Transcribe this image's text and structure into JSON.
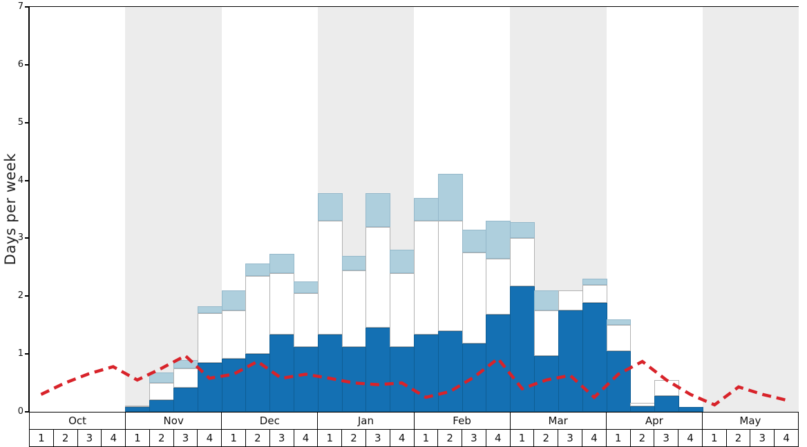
{
  "chart_data": {
    "type": "bar",
    "title": "",
    "ylabel": "Days per week",
    "ylim": [
      0,
      7
    ],
    "yticks": [
      "0",
      "1",
      "2",
      "3",
      "4",
      "5",
      "6",
      "7"
    ],
    "grid": false,
    "legend": "none",
    "months": [
      "Oct",
      "Nov",
      "Dec",
      "Jan",
      "Feb",
      "Mar",
      "Apr",
      "May"
    ],
    "weeks_per_month": 4,
    "week_labels": [
      "1",
      "2",
      "3",
      "4"
    ],
    "shaded_months": [
      "Nov",
      "Jan",
      "Mar",
      "May"
    ],
    "band_color": "#ececec",
    "series": [
      {
        "name": "dark-blue",
        "color": "#1470b3",
        "border": "#0e5d94",
        "values": [
          0,
          0,
          0,
          0,
          0.08,
          0.2,
          0.42,
          0.85,
          0.92,
          1.0,
          1.33,
          1.12,
          1.33,
          1.12,
          1.45,
          1.12,
          1.33,
          1.4,
          1.18,
          1.68,
          2.17,
          0.97,
          1.75,
          1.88,
          1.05,
          0.1,
          0.28,
          0.08,
          0,
          0,
          0,
          0
        ]
      },
      {
        "name": "white",
        "color": "#ffffff",
        "border": "#b0b0b0",
        "values": [
          0,
          0,
          0,
          0,
          0.02,
          0.3,
          0.33,
          0.85,
          0.83,
          1.35,
          1.07,
          0.93,
          1.97,
          1.33,
          1.75,
          1.28,
          1.97,
          1.9,
          1.57,
          0.97,
          0.83,
          0.78,
          0.35,
          0.32,
          0.45,
          0.05,
          0.27,
          0,
          0,
          0,
          0,
          0
        ]
      },
      {
        "name": "light-blue",
        "color": "#aecfdd",
        "border": "#94b8ca",
        "values": [
          0,
          0,
          0,
          0,
          0,
          0.18,
          0.15,
          0.12,
          0.35,
          0.22,
          0.33,
          0.2,
          0.48,
          0.25,
          0.58,
          0.4,
          0.4,
          0.82,
          0.4,
          0.65,
          0.28,
          0.35,
          0,
          0.1,
          0.1,
          0,
          0,
          0,
          0,
          0,
          0,
          0
        ]
      }
    ],
    "line": {
      "name": "red-dashed",
      "color": "#d8232a",
      "style": "dashed",
      "values": [
        0.3,
        0.5,
        0.66,
        0.78,
        0.55,
        0.75,
        0.97,
        0.58,
        0.65,
        0.87,
        0.58,
        0.65,
        0.58,
        0.5,
        0.47,
        0.5,
        0.25,
        0.35,
        0.6,
        0.92,
        0.4,
        0.55,
        0.63,
        0.25,
        0.65,
        0.87,
        0.55,
        0.3,
        0.12,
        0.43,
        0.3,
        0.2
      ]
    }
  }
}
